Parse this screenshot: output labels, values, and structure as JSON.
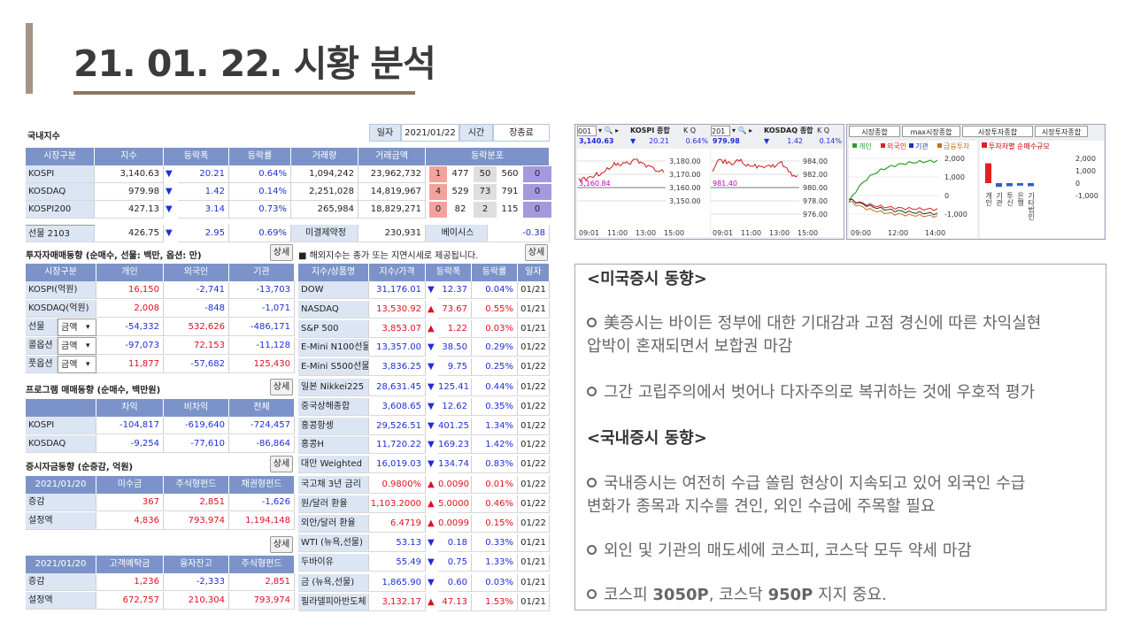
{
  "title": "21. 01. 22. 시황 분석",
  "domestic": {
    "heading": "국내지수",
    "date_label": "일자",
    "date": "2021/01/22",
    "time_label": "시간",
    "time": "장종료",
    "cols": [
      "시장구분",
      "지수",
      "등락폭",
      "등락률",
      "거래량",
      "거래금액",
      "등락분포"
    ],
    "rows": [
      {
        "name": "KOSPI",
        "index": "3,140.63",
        "arrow": "▼",
        "chg": "20.21",
        "pct": "0.64%",
        "vol": "1,094,242",
        "amt": "23,962,732",
        "dist": [
          "1",
          "477",
          "50",
          "560",
          "0"
        ]
      },
      {
        "name": "KOSDAQ",
        "index": "979.98",
        "arrow": "▼",
        "chg": "1.42",
        "pct": "0.14%",
        "vol": "2,251,028",
        "amt": "14,819,967",
        "dist": [
          "4",
          "529",
          "73",
          "791",
          "0"
        ]
      },
      {
        "name": "KOSPI200",
        "index": "427.13",
        "arrow": "▼",
        "chg": "3.14",
        "pct": "0.73%",
        "vol": "265,984",
        "amt": "18,829,271",
        "dist": [
          "0",
          "82",
          "2",
          "115",
          "0"
        ]
      }
    ],
    "futures": {
      "name": "선물 2103",
      "index": "426.75",
      "arrow": "▼",
      "chg": "2.95",
      "pct": "0.69%",
      "oi_label": "미결제약정",
      "oi": "230,931",
      "basis_label": "베이시스",
      "basis": "-0.38"
    }
  },
  "investor": {
    "heading": "투자자매매동향 (순매수, 선물: 백만, 옵션: 만)",
    "button": "상세",
    "cols": [
      "시장구분",
      "개인",
      "외국인",
      "기관"
    ],
    "rows": [
      {
        "name": "KOSPI(억원)",
        "sel": "",
        "v": [
          "16,150",
          "-2,741",
          "-13,703"
        ]
      },
      {
        "name": "KOSDAQ(억원)",
        "sel": "",
        "v": [
          "2,008",
          "-848",
          "-1,071"
        ]
      },
      {
        "name": "선물",
        "sel": "금액",
        "v": [
          "-54,332",
          "532,626",
          "-486,171"
        ]
      },
      {
        "name": "콜옵션",
        "sel": "금액",
        "v": [
          "-97,073",
          "72,153",
          "-11,128"
        ]
      },
      {
        "name": "풋옵션",
        "sel": "금액",
        "v": [
          "11,877",
          "-57,682",
          "125,430"
        ]
      }
    ]
  },
  "program": {
    "heading": "프로그램 매매동향 (순매수, 백만원)",
    "button": "상세",
    "cols": [
      "",
      "차익",
      "비차익",
      "전체"
    ],
    "rows": [
      {
        "name": "KOSPI",
        "v": [
          "-104,817",
          "-619,640",
          "-724,457"
        ]
      },
      {
        "name": "KOSDAQ",
        "v": [
          "-9,254",
          "-77,610",
          "-86,864"
        ]
      }
    ]
  },
  "fund": {
    "heading": "증시자금동향 (순증감, 억원)",
    "button": "상세",
    "cols": [
      "2021/01/20",
      "미수금",
      "주식형펀드",
      "채권형펀드"
    ],
    "rows": [
      {
        "name": "증감",
        "v": [
          "367",
          "2,851",
          "-1,626"
        ]
      },
      {
        "name": "설정액",
        "v": [
          "4,836",
          "793,974",
          "1,194,148"
        ]
      }
    ]
  },
  "fund2": {
    "button": "상세",
    "cols": [
      "2021/01/20",
      "고객예탁금",
      "융자잔고",
      "주식형펀드"
    ],
    "rows": [
      {
        "name": "증감",
        "v": [
          "1,236",
          "-2,333",
          "2,851"
        ]
      },
      {
        "name": "설정액",
        "v": [
          "672,757",
          "210,304",
          "793,974"
        ]
      }
    ]
  },
  "overseas": {
    "notice": "■ 해외지수는 종가 또는 지연시세로 제공됩니다.",
    "button": "상세",
    "cols": [
      "지수/상품명",
      "지수/가격",
      "등락폭",
      "등락률",
      "일자"
    ],
    "rows": [
      {
        "name": "DOW",
        "price": "31,176.01",
        "arrow": "▼",
        "chg": "12.37",
        "pct": "0.04%",
        "date": "01/21"
      },
      {
        "name": "NASDAQ",
        "price": "13,530.92",
        "arrow": "▲",
        "chg": "73.67",
        "pct": "0.55%",
        "date": "01/21"
      },
      {
        "name": "S&P 500",
        "price": "3,853.07",
        "arrow": "▲",
        "chg": "1.22",
        "pct": "0.03%",
        "date": "01/21"
      },
      {
        "name": "E-Mini N100선물",
        "price": "13,357.00",
        "arrow": "▼",
        "chg": "38.50",
        "pct": "0.29%",
        "date": "01/22"
      },
      {
        "name": "E-Mini S500선물",
        "price": "3,836.25",
        "arrow": "▼",
        "chg": "9.75",
        "pct": "0.25%",
        "date": "01/22"
      },
      {
        "name": "일본 Nikkei225",
        "price": "28,631.45",
        "arrow": "▼",
        "chg": "125.41",
        "pct": "0.44%",
        "date": "01/22"
      },
      {
        "name": "중국상해종합",
        "price": "3,608.65",
        "arrow": "▼",
        "chg": "12.62",
        "pct": "0.35%",
        "date": "01/22"
      },
      {
        "name": "홍콩항셍",
        "price": "29,526.51",
        "arrow": "▼",
        "chg": "401.25",
        "pct": "1.34%",
        "date": "01/22"
      },
      {
        "name": "홍콩H",
        "price": "11,720.22",
        "arrow": "▼",
        "chg": "169.23",
        "pct": "1.42%",
        "date": "01/22"
      },
      {
        "name": "대만 Weighted",
        "price": "16,019.03",
        "arrow": "▼",
        "chg": "134.74",
        "pct": "0.83%",
        "date": "01/22"
      },
      {
        "name": "국고채 3년 금리",
        "price": "0.9800%",
        "arrow": "▲",
        "chg": "0.0090",
        "pct": "0.01%",
        "date": "01/22"
      },
      {
        "name": "원/달러 환율",
        "price": "1,103.2000",
        "arrow": "▲",
        "chg": "5.0000",
        "pct": "0.46%",
        "date": "01/22"
      },
      {
        "name": "외안/달러 환율",
        "price": "6.4719",
        "arrow": "▲",
        "chg": "0.0099",
        "pct": "0.15%",
        "date": "01/22"
      },
      {
        "name": "WTI (뉴욕,선물)",
        "price": "53.13",
        "arrow": "▼",
        "chg": "0.18",
        "pct": "0.33%",
        "date": "01/21"
      },
      {
        "name": "두바이유",
        "price": "55.49",
        "arrow": "▼",
        "chg": "0.75",
        "pct": "1.33%",
        "date": "01/21"
      },
      {
        "name": "금 (뉴욕,선물)",
        "price": "1,865.90",
        "arrow": "▼",
        "chg": "0.60",
        "pct": "0.03%",
        "date": "01/21"
      },
      {
        "name": "필라델피아반도체",
        "price": "3,132.17",
        "arrow": "▲",
        "chg": "47.13",
        "pct": "1.53%",
        "date": "01/21"
      }
    ]
  },
  "charts": {
    "kospi": {
      "code": "001",
      "name": "KOSPI 종합",
      "price": "3,140.63",
      "arrow": "▼",
      "chg": "20.21",
      "pct": "0.64%",
      "ticks": [
        "3,180.00",
        "3,170.00",
        "3,160.00",
        "3,150.00"
      ],
      "ref": "3,160.84",
      "times": [
        "09:01",
        "11:00",
        "13:00",
        "15:00"
      ]
    },
    "kosdaq": {
      "code": "201",
      "name": "KOSDAQ 종합",
      "price": "979.98",
      "arrow": "▼",
      "chg": "1.42",
      "pct": "0.14%",
      "ticks": [
        "984.00",
        "982.00",
        "980.00",
        "978.00",
        "976.00"
      ],
      "ref": "981.40",
      "times": [
        "09:01",
        "11:00",
        "13:00",
        "15:00"
      ]
    },
    "investor": {
      "tabs": [
        "시장종합",
        "max시장종합",
        "시장투자종합",
        "시장투자종합"
      ],
      "legend": [
        "개인",
        "외국인",
        "기관",
        "금융투자"
      ],
      "ticks": [
        "2,000",
        "1,000",
        "0",
        "-1,000"
      ],
      "times": [
        "09:00",
        "12:00",
        "14:00"
      ],
      "bar_title": "투자자별 순매수규모",
      "bar_ticks": [
        "2,000",
        "1,000",
        "0",
        "-1,000"
      ],
      "bar_labels": [
        "개인",
        "기관",
        "투신",
        "은행",
        "기타법인"
      ]
    }
  },
  "commentary": {
    "us_head": "<미국증시 동향>",
    "us1": "美증시는 바이든 정부에 대한 기대감과 고점 경신에 따른 차익실현",
    "us1b": "압박이 혼재되면서 보합권 마감",
    "us2": "그간 고립주의에서 벗어나 다자주의로 복귀하는 것에 우호적 평가",
    "kr_head": "<국내증시 동향>",
    "kr1": "국내증시는 여전히 수급 쏠림 현상이 지속되고 있어 외국인 수급",
    "kr1b": "변화가 종목과 지수를 견인, 외인 수급에 주목할 필요",
    "kr2": "외인 및 기관의 매도세에 코스피, 코스닥 모두 약세 마감",
    "kr3a": "코스피 ",
    "kr3b": "3050P",
    "kr3c": ", 코스닥 ",
    "kr3d": "950P",
    "kr3e": " 지지 중요."
  }
}
